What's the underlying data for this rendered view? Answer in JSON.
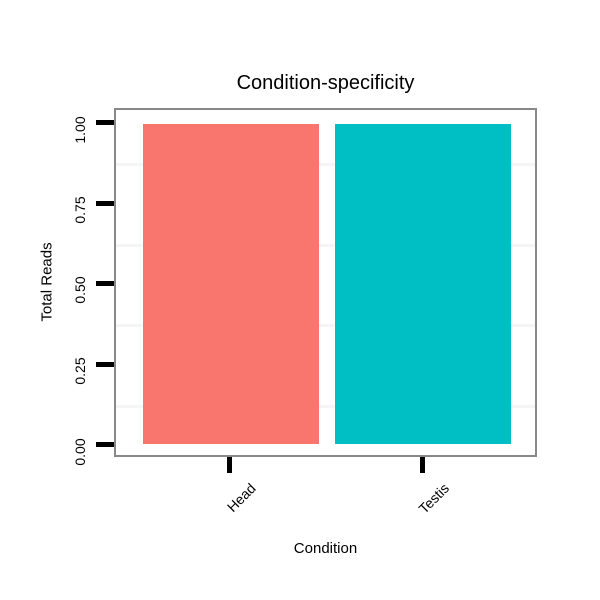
{
  "chart_data": {
    "type": "bar",
    "title": "Condition-specificity",
    "xlabel": "Condition",
    "ylabel": "Total Reads",
    "categories": [
      "Head",
      "Testis"
    ],
    "values": [
      1.0,
      1.0
    ],
    "ylim": [
      0,
      1
    ],
    "yticks": [
      "0.00",
      "0.25",
      "0.50",
      "0.75",
      "1.00"
    ],
    "bar_colors": [
      "#F8766D",
      "#00BFC4"
    ],
    "panel_border_color": "#888888",
    "minor_gridline_color": "#f5f5f5",
    "grid": "minor-only",
    "legend": "none"
  }
}
